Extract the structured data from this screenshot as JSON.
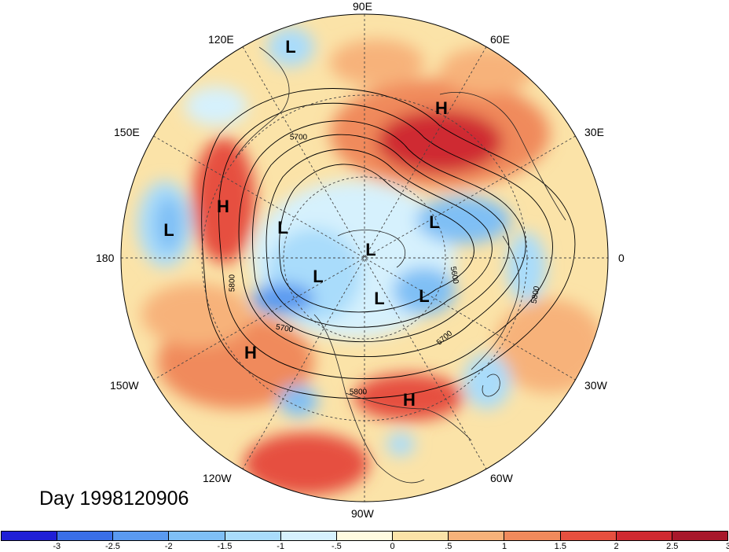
{
  "map": {
    "title": "Day 1998120906",
    "longitude_labels": [
      {
        "id": "90E",
        "text": "90E"
      },
      {
        "id": "60E",
        "text": "60E"
      },
      {
        "id": "30E",
        "text": "30E"
      },
      {
        "id": "0",
        "text": "0"
      },
      {
        "id": "30W",
        "text": "30W"
      },
      {
        "id": "60W",
        "text": "60W"
      },
      {
        "id": "90W",
        "text": "90W"
      },
      {
        "id": "120W",
        "text": "120W"
      },
      {
        "id": "150W",
        "text": "150W"
      },
      {
        "id": "180",
        "text": "180"
      },
      {
        "id": "150E",
        "text": "150E"
      },
      {
        "id": "120E",
        "text": "120E"
      }
    ],
    "pressure_centers": [
      {
        "type": "L",
        "text": "L"
      },
      {
        "type": "H",
        "text": "H"
      },
      {
        "type": "L",
        "text": "L"
      },
      {
        "type": "H",
        "text": "H"
      },
      {
        "type": "L",
        "text": "L"
      },
      {
        "type": "L",
        "text": "L"
      },
      {
        "type": "L",
        "text": "L"
      },
      {
        "type": "L",
        "text": "L"
      },
      {
        "type": "L",
        "text": "L"
      },
      {
        "type": "L",
        "text": "L"
      },
      {
        "type": "L",
        "text": "L"
      },
      {
        "type": "H",
        "text": "H"
      },
      {
        "type": "H",
        "text": "H"
      }
    ],
    "contour_labels": [
      "5700",
      "5800",
      "5600",
      "5800",
      "5700",
      "5700",
      "5800"
    ]
  },
  "colorbar": {
    "colors": [
      "#1f1fd6",
      "#3a6fe8",
      "#5a9af0",
      "#7fbff5",
      "#a9dcfb",
      "#d6f1fd",
      "#fffbe0",
      "#fbe3a8",
      "#f7b27a",
      "#f08a5c",
      "#e6503f",
      "#cf2a31",
      "#a8182b"
    ],
    "tick_labels": [
      "-3",
      "-2.5",
      "-2",
      "-1.5",
      "-1",
      "-.5",
      "0",
      ".5",
      "1",
      "1.5",
      "2",
      "2.5",
      "3"
    ]
  }
}
